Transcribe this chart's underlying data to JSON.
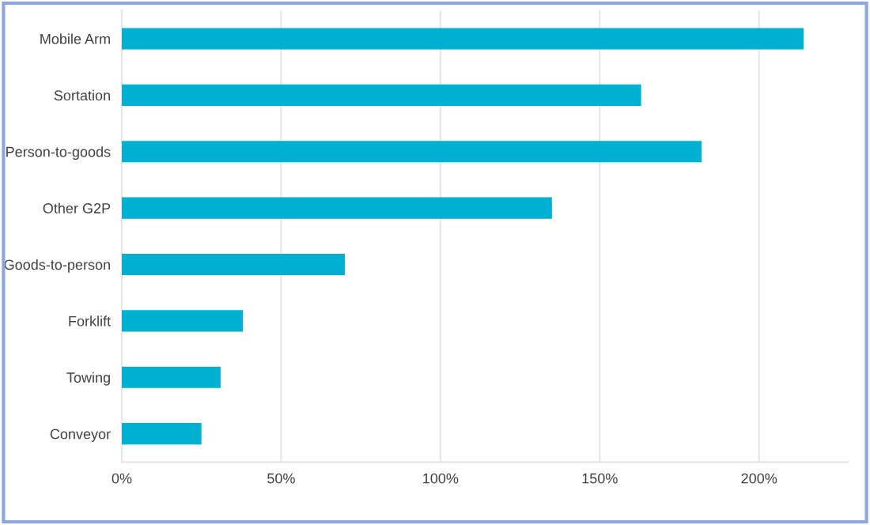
{
  "chart_data": {
    "type": "bar",
    "orientation": "horizontal",
    "categories": [
      "Mobile Arm",
      "Sortation",
      "Person-to-goods",
      "Other G2P",
      "Goods-to-person",
      "Forklift",
      "Towing",
      "Conveyor"
    ],
    "values": [
      214,
      163,
      182,
      135,
      70,
      38,
      31,
      25
    ],
    "color": "#00b0d0",
    "xlim": [
      0,
      228
    ],
    "xticks": [
      {
        "value": 0,
        "label": "0%"
      },
      {
        "value": 50,
        "label": "50%"
      },
      {
        "value": 100,
        "label": "100%"
      },
      {
        "value": 150,
        "label": "150%"
      },
      {
        "value": 200,
        "label": "200%"
      }
    ],
    "grid": "x"
  }
}
